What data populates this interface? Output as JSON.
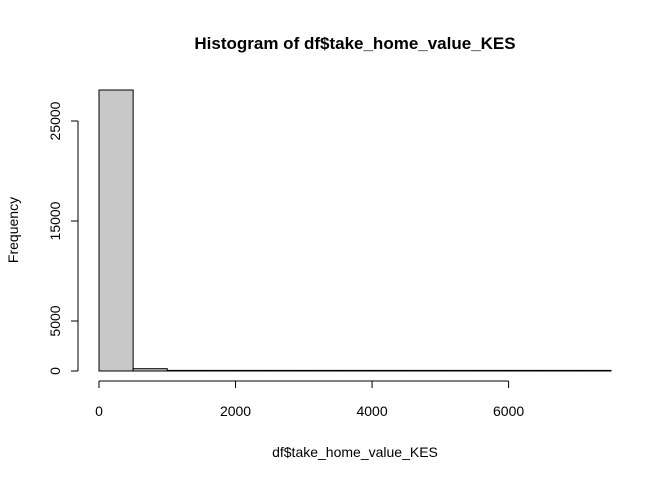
{
  "chart_data": {
    "type": "bar",
    "title": "Histogram of df$take_home_value_KES",
    "xlabel": "df$take_home_value_KES",
    "ylabel": "Frequency",
    "x_ticks": [
      0,
      2000,
      4000,
      6000
    ],
    "x_tick_labels": [
      "0",
      "2000",
      "4000",
      "6000"
    ],
    "y_ticks": [
      0,
      5000,
      15000,
      25000
    ],
    "y_tick_labels": [
      "0",
      "5000",
      "15000",
      "25000"
    ],
    "xlim": [
      0,
      7500
    ],
    "ylim": [
      0,
      28000
    ],
    "bins": [
      {
        "start": 0,
        "end": 500,
        "count": 28100
      },
      {
        "start": 500,
        "end": 1000,
        "count": 230
      },
      {
        "start": 1000,
        "end": 1500,
        "count": 40
      },
      {
        "start": 1500,
        "end": 2000,
        "count": 15
      },
      {
        "start": 2000,
        "end": 2500,
        "count": 10
      },
      {
        "start": 2500,
        "end": 3000,
        "count": 6
      },
      {
        "start": 3000,
        "end": 3500,
        "count": 4
      },
      {
        "start": 3500,
        "end": 4000,
        "count": 3
      },
      {
        "start": 4000,
        "end": 4500,
        "count": 2
      },
      {
        "start": 4500,
        "end": 5000,
        "count": 2
      },
      {
        "start": 5000,
        "end": 5500,
        "count": 1
      },
      {
        "start": 5500,
        "end": 6000,
        "count": 1
      },
      {
        "start": 6000,
        "end": 6500,
        "count": 1
      },
      {
        "start": 6500,
        "end": 7000,
        "count": 1
      },
      {
        "start": 7000,
        "end": 7500,
        "count": 1
      }
    ],
    "bar_fill": "#c8c8c8",
    "bar_stroke": "#000000",
    "grid": false,
    "legend": "none"
  }
}
